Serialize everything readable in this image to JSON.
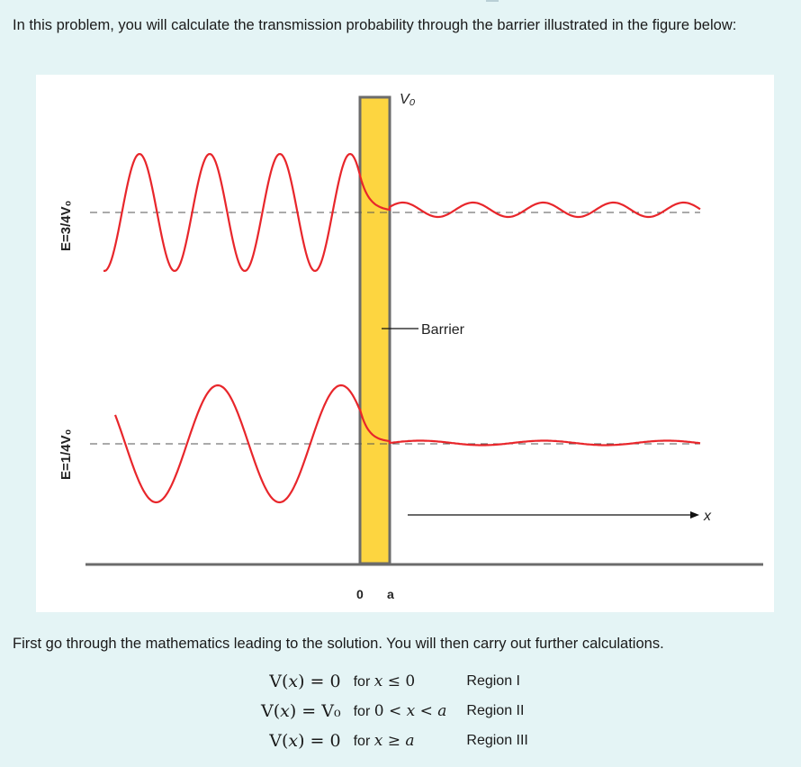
{
  "intro_text": "In this problem, you will calculate the transmission probability through the barrier illustrated in the figure below:",
  "figure": {
    "barrier_top_label": "V₀",
    "barrier_label": "Barrier",
    "energy_label_upper": "E=3/4V₀",
    "energy_label_lower": "E=1/4V₀",
    "axis_label": "x",
    "tick_zero": "0",
    "tick_a": "a",
    "colors": {
      "wave": "#e8262b",
      "barrier_fill": "#fdd540",
      "barrier_edge": "#6b6b6b",
      "dashed_line": "#555555"
    }
  },
  "followup_text": "First go through the mathematics leading to the solution. You will then carry out further calculations.",
  "potential_rows": [
    {
      "equation": "V(𝑥) = 0",
      "condition": "𝑥 ≤ 0",
      "region": "Region I"
    },
    {
      "equation": "V(𝑥) = V₀",
      "condition": "0 < 𝑥 < 𝑎",
      "region": "Region II"
    },
    {
      "equation": "V(𝑥) = 0",
      "condition": "𝑥 ≥ 𝑎",
      "region": "Region III"
    }
  ],
  "condition_prefix": "for"
}
